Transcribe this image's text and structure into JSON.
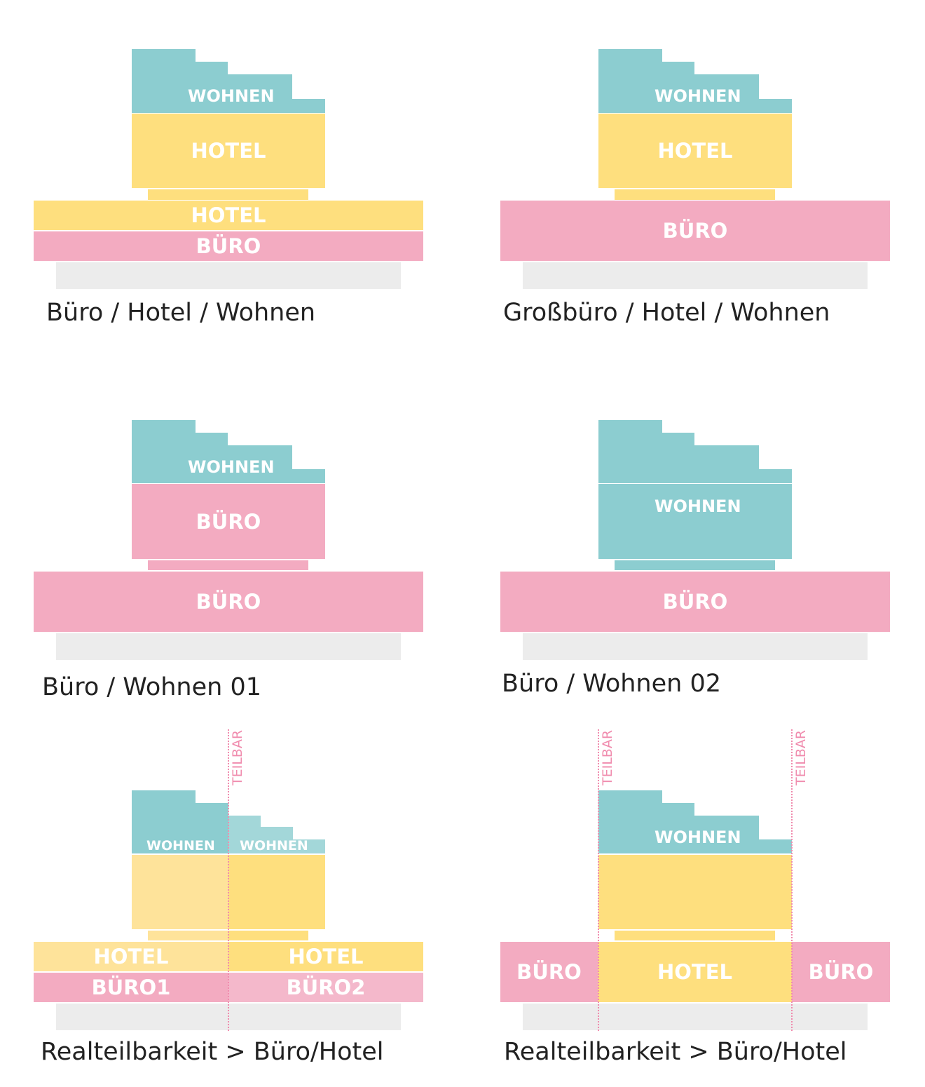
{
  "diagrams": [
    {
      "caption": "Büro / Hotel / Wohnen",
      "tower_label": "WOHNEN",
      "upper_label": "HOTEL",
      "band_top_label": "HOTEL",
      "band_bottom_label": "BÜRO"
    },
    {
      "caption": "Großbüro / Hotel / Wohnen",
      "tower_label": "WOHNEN",
      "upper_label": "HOTEL",
      "base_label": "BÜRO"
    },
    {
      "caption": "Büro / Wohnen 01",
      "tower_label": "WOHNEN",
      "upper_label": "BÜRO",
      "base_label": "BÜRO"
    },
    {
      "caption": "Büro / Wohnen 02",
      "tower_label": "WOHNEN",
      "base_label": "BÜRO"
    },
    {
      "caption": "Realteilbarkeit > Büro/Hotel",
      "divider_label": "TEILBAR",
      "tower_left_label": "WOHNEN",
      "tower_right_label": "WOHNEN",
      "hotel_left_label": "HOTEL",
      "hotel_right_label": "HOTEL",
      "buro_left_label": "BÜRO1",
      "buro_right_label": "BÜRO2"
    },
    {
      "caption": "Realteilbarkeit > Büro/Hotel",
      "divider_left_label": "TEILBAR",
      "divider_right_label": "TEILBAR",
      "tower_label": "WOHNEN",
      "buro_left_label": "BÜRO",
      "hotel_label": "HOTEL",
      "buro_right_label": "BÜRO"
    }
  ],
  "colors": {
    "wohnen": "#8ccdd0",
    "hotel": "#fedf7e",
    "buro": "#f3abc1",
    "ground": "#ececec",
    "teilbar": "#f08cae"
  }
}
